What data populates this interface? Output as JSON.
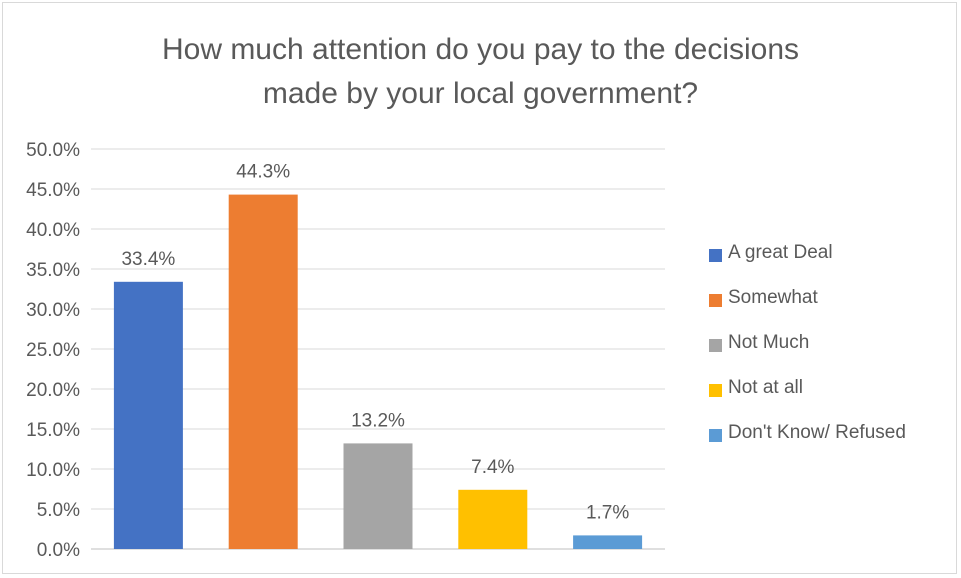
{
  "chart_data": {
    "type": "bar",
    "title": "How much attention do you pay to the decisions made by your local government?",
    "title_lines": [
      "How much attention do you pay to the decisions",
      "made by your local government?"
    ],
    "categories": [
      "A great Deal",
      "Somewhat",
      "Not Much",
      "Not at all",
      "Don't Know/ Refused"
    ],
    "values": [
      33.4,
      44.3,
      13.2,
      7.4,
      1.7
    ],
    "data_labels": [
      "33.4%",
      "44.3%",
      "13.2%",
      "7.4%",
      "1.7%"
    ],
    "colors": [
      "#4472c4",
      "#ed7d31",
      "#a5a5a5",
      "#ffc000",
      "#5b9bd5"
    ],
    "ylim": [
      0,
      50
    ],
    "yticks": [
      0,
      5,
      10,
      15,
      20,
      25,
      30,
      35,
      40,
      45,
      50
    ],
    "ytick_labels": [
      "0.0%",
      "5.0%",
      "10.0%",
      "15.0%",
      "20.0%",
      "25.0%",
      "30.0%",
      "35.0%",
      "40.0%",
      "45.0%",
      "50.0%"
    ],
    "xlabel": "",
    "ylabel": "",
    "grid": true,
    "legend_position": "right",
    "legend": [
      "A great Deal",
      "Somewhat",
      "Not Much",
      "Not at all",
      "Don't Know/ Refused"
    ]
  }
}
